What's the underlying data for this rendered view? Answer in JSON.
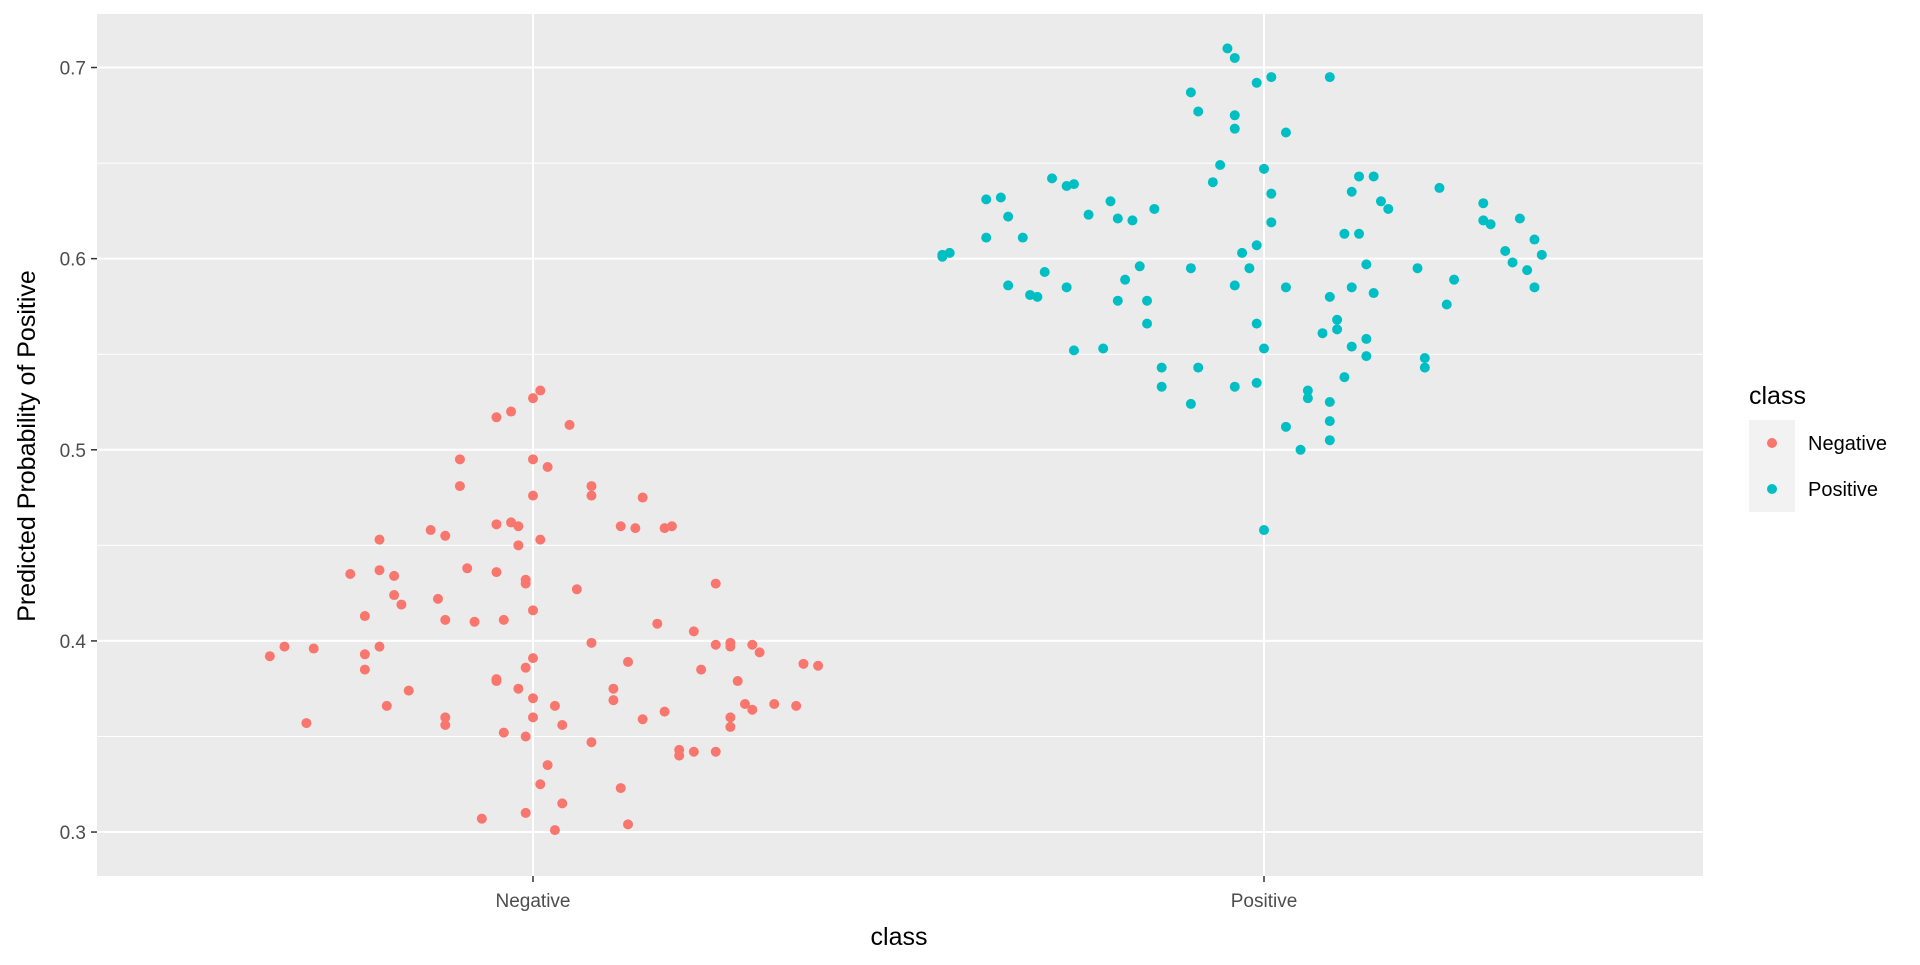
{
  "chart_data": {
    "type": "scatter",
    "xlabel": "class",
    "ylabel": "Predicted Probability of Positive",
    "x_categories": [
      "Negative",
      "Positive"
    ],
    "ylim": [
      0.277,
      0.728
    ],
    "y_ticks": [
      0.3,
      0.4,
      0.5,
      0.6,
      0.7
    ],
    "y_tick_labels": [
      "0.3",
      "0.4",
      "0.5",
      "0.6",
      "0.7"
    ],
    "grid": true,
    "legend": {
      "title": "class",
      "placement": "right",
      "entries": [
        "Negative",
        "Positive"
      ]
    },
    "colors": {
      "panel_background": "#EBEBEB",
      "grid_major": "#FFFFFF",
      "axis_text": "#4D4D4D",
      "axis_title": "#000000",
      "Negative": "#F8766D",
      "Positive": "#00BFC4"
    },
    "series": [
      {
        "name": "Negative",
        "points": [
          [
            -0.36,
            0.392
          ],
          [
            -0.34,
            0.397
          ],
          [
            -0.31,
            0.357
          ],
          [
            -0.3,
            0.396
          ],
          [
            -0.25,
            0.435
          ],
          [
            -0.23,
            0.393
          ],
          [
            -0.23,
            0.413
          ],
          [
            -0.23,
            0.385
          ],
          [
            -0.21,
            0.453
          ],
          [
            -0.21,
            0.437
          ],
          [
            -0.21,
            0.397
          ],
          [
            -0.2,
            0.366
          ],
          [
            -0.19,
            0.424
          ],
          [
            -0.19,
            0.434
          ],
          [
            -0.18,
            0.419
          ],
          [
            -0.17,
            0.374
          ],
          [
            -0.14,
            0.458
          ],
          [
            -0.13,
            0.422
          ],
          [
            -0.12,
            0.455
          ],
          [
            -0.12,
            0.36
          ],
          [
            -0.12,
            0.356
          ],
          [
            -0.12,
            0.411
          ],
          [
            -0.1,
            0.481
          ],
          [
            -0.1,
            0.495
          ],
          [
            -0.09,
            0.438
          ],
          [
            -0.08,
            0.41
          ],
          [
            -0.07,
            0.307
          ],
          [
            -0.05,
            0.517
          ],
          [
            -0.05,
            0.461
          ],
          [
            -0.05,
            0.436
          ],
          [
            -0.05,
            0.38
          ],
          [
            -0.05,
            0.379
          ],
          [
            -0.04,
            0.352
          ],
          [
            -0.04,
            0.411
          ],
          [
            -0.03,
            0.52
          ],
          [
            -0.03,
            0.462
          ],
          [
            -0.02,
            0.45
          ],
          [
            -0.02,
            0.375
          ],
          [
            -0.02,
            0.46
          ],
          [
            -0.01,
            0.432
          ],
          [
            -0.01,
            0.43
          ],
          [
            -0.01,
            0.386
          ],
          [
            -0.01,
            0.31
          ],
          [
            -0.01,
            0.35
          ],
          [
            0.0,
            0.495
          ],
          [
            0.0,
            0.416
          ],
          [
            0.0,
            0.391
          ],
          [
            0.0,
            0.476
          ],
          [
            0.0,
            0.37
          ],
          [
            0.0,
            0.527
          ],
          [
            0.0,
            0.36
          ],
          [
            0.01,
            0.453
          ],
          [
            0.01,
            0.325
          ],
          [
            0.01,
            0.531
          ],
          [
            0.02,
            0.491
          ],
          [
            0.02,
            0.335
          ],
          [
            0.03,
            0.366
          ],
          [
            0.03,
            0.301
          ],
          [
            0.04,
            0.356
          ],
          [
            0.04,
            0.315
          ],
          [
            0.05,
            0.513
          ],
          [
            0.06,
            0.427
          ],
          [
            0.08,
            0.399
          ],
          [
            0.08,
            0.481
          ],
          [
            0.08,
            0.476
          ],
          [
            0.08,
            0.347
          ],
          [
            0.11,
            0.369
          ],
          [
            0.11,
            0.375
          ],
          [
            0.12,
            0.46
          ],
          [
            0.12,
            0.323
          ],
          [
            0.13,
            0.304
          ],
          [
            0.13,
            0.389
          ],
          [
            0.14,
            0.459
          ],
          [
            0.15,
            0.359
          ],
          [
            0.15,
            0.475
          ],
          [
            0.17,
            0.409
          ],
          [
            0.18,
            0.363
          ],
          [
            0.18,
            0.459
          ],
          [
            0.19,
            0.46
          ],
          [
            0.2,
            0.343
          ],
          [
            0.2,
            0.34
          ],
          [
            0.22,
            0.405
          ],
          [
            0.22,
            0.342
          ],
          [
            0.23,
            0.385
          ],
          [
            0.25,
            0.43
          ],
          [
            0.25,
            0.398
          ],
          [
            0.25,
            0.342
          ],
          [
            0.27,
            0.397
          ],
          [
            0.27,
            0.399
          ],
          [
            0.27,
            0.36
          ],
          [
            0.27,
            0.355
          ],
          [
            0.28,
            0.379
          ],
          [
            0.29,
            0.367
          ],
          [
            0.3,
            0.398
          ],
          [
            0.3,
            0.364
          ],
          [
            0.31,
            0.394
          ],
          [
            0.33,
            0.367
          ],
          [
            0.36,
            0.366
          ],
          [
            0.37,
            0.388
          ],
          [
            0.39,
            0.387
          ]
        ]
      },
      {
        "name": "Positive",
        "points": [
          [
            -0.44,
            0.602
          ],
          [
            -0.44,
            0.601
          ],
          [
            -0.43,
            0.603
          ],
          [
            -0.38,
            0.631
          ],
          [
            -0.38,
            0.611
          ],
          [
            -0.36,
            0.632
          ],
          [
            -0.35,
            0.622
          ],
          [
            -0.35,
            0.586
          ],
          [
            -0.33,
            0.611
          ],
          [
            -0.32,
            0.581
          ],
          [
            -0.31,
            0.58
          ],
          [
            -0.3,
            0.593
          ],
          [
            -0.29,
            0.642
          ],
          [
            -0.27,
            0.585
          ],
          [
            -0.27,
            0.638
          ],
          [
            -0.26,
            0.639
          ],
          [
            -0.26,
            0.552
          ],
          [
            -0.24,
            0.623
          ],
          [
            -0.22,
            0.553
          ],
          [
            -0.21,
            0.63
          ],
          [
            -0.2,
            0.621
          ],
          [
            -0.2,
            0.578
          ],
          [
            -0.19,
            0.589
          ],
          [
            -0.18,
            0.62
          ],
          [
            -0.17,
            0.596
          ],
          [
            -0.16,
            0.566
          ],
          [
            -0.16,
            0.578
          ],
          [
            -0.15,
            0.626
          ],
          [
            -0.14,
            0.543
          ],
          [
            -0.14,
            0.533
          ],
          [
            -0.1,
            0.687
          ],
          [
            -0.1,
            0.524
          ],
          [
            -0.1,
            0.595
          ],
          [
            -0.09,
            0.677
          ],
          [
            -0.09,
            0.543
          ],
          [
            -0.07,
            0.64
          ],
          [
            -0.06,
            0.649
          ],
          [
            -0.05,
            0.71
          ],
          [
            -0.04,
            0.675
          ],
          [
            -0.04,
            0.533
          ],
          [
            -0.04,
            0.705
          ],
          [
            -0.04,
            0.668
          ],
          [
            -0.04,
            0.586
          ],
          [
            -0.03,
            0.603
          ],
          [
            -0.02,
            0.595
          ],
          [
            -0.01,
            0.535
          ],
          [
            -0.01,
            0.566
          ],
          [
            -0.01,
            0.607
          ],
          [
            -0.01,
            0.692
          ],
          [
            0.0,
            0.647
          ],
          [
            0.0,
            0.458
          ],
          [
            0.0,
            0.553
          ],
          [
            0.01,
            0.695
          ],
          [
            0.01,
            0.634
          ],
          [
            0.01,
            0.619
          ],
          [
            0.03,
            0.585
          ],
          [
            0.03,
            0.666
          ],
          [
            0.03,
            0.512
          ],
          [
            0.05,
            0.5
          ],
          [
            0.06,
            0.527
          ],
          [
            0.06,
            0.531
          ],
          [
            0.08,
            0.561
          ],
          [
            0.09,
            0.505
          ],
          [
            0.09,
            0.515
          ],
          [
            0.09,
            0.58
          ],
          [
            0.09,
            0.525
          ],
          [
            0.09,
            0.695
          ],
          [
            0.1,
            0.568
          ],
          [
            0.1,
            0.563
          ],
          [
            0.11,
            0.538
          ],
          [
            0.11,
            0.613
          ],
          [
            0.12,
            0.554
          ],
          [
            0.12,
            0.635
          ],
          [
            0.12,
            0.585
          ],
          [
            0.13,
            0.613
          ],
          [
            0.13,
            0.643
          ],
          [
            0.14,
            0.549
          ],
          [
            0.14,
            0.558
          ],
          [
            0.14,
            0.597
          ],
          [
            0.15,
            0.582
          ],
          [
            0.15,
            0.643
          ],
          [
            0.16,
            0.63
          ],
          [
            0.17,
            0.626
          ],
          [
            0.21,
            0.595
          ],
          [
            0.22,
            0.548
          ],
          [
            0.22,
            0.543
          ],
          [
            0.24,
            0.637
          ],
          [
            0.25,
            0.576
          ],
          [
            0.26,
            0.589
          ],
          [
            0.3,
            0.629
          ],
          [
            0.3,
            0.62
          ],
          [
            0.31,
            0.618
          ],
          [
            0.33,
            0.604
          ],
          [
            0.34,
            0.598
          ],
          [
            0.35,
            0.621
          ],
          [
            0.36,
            0.594
          ],
          [
            0.37,
            0.585
          ],
          [
            0.37,
            0.61
          ],
          [
            0.38,
            0.602
          ]
        ]
      }
    ]
  }
}
